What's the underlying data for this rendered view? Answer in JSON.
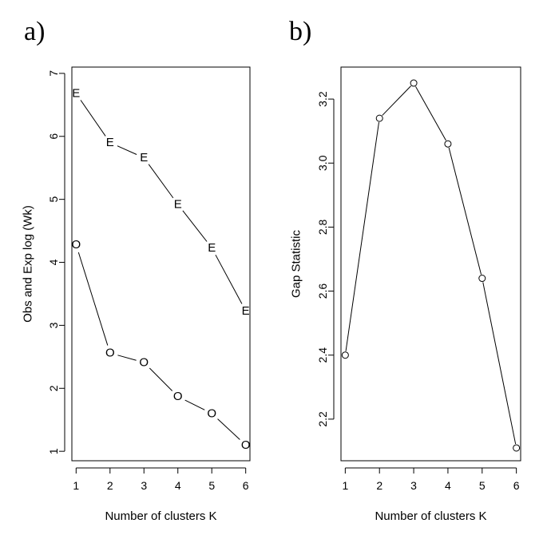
{
  "chart_data": [
    {
      "panel_label": "a)",
      "type": "line",
      "xlabel": "Number of clusters K",
      "ylabel": "Obs and Exp log (Wk)",
      "x": [
        1,
        2,
        3,
        4,
        5,
        6
      ],
      "xlim": [
        0.875,
        6.125
      ],
      "ylim": [
        0.85,
        7.1
      ],
      "xticks": [
        1,
        2,
        3,
        4,
        5,
        6
      ],
      "yticks": [
        1,
        2,
        3,
        4,
        5,
        6,
        7
      ],
      "grid": false,
      "series": [
        {
          "marker": "E",
          "values": [
            6.68,
            5.9,
            5.66,
            4.92,
            4.23,
            3.23
          ]
        },
        {
          "marker": "O",
          "values": [
            4.28,
            2.56,
            2.41,
            1.87,
            1.6,
            1.1
          ]
        }
      ]
    },
    {
      "panel_label": "b)",
      "type": "line",
      "xlabel": "Number of clusters K",
      "ylabel": "Gap Statistic",
      "x": [
        1,
        2,
        3,
        4,
        5,
        6
      ],
      "xlim": [
        0.875,
        6.125
      ],
      "ylim": [
        2.07,
        3.3
      ],
      "xticks": [
        1,
        2,
        3,
        4,
        5,
        6
      ],
      "yticks": [
        2.2,
        2.4,
        2.6,
        2.8,
        3.0,
        3.2
      ],
      "ytick_labels": [
        "2.2",
        "2.4",
        "2.6",
        "2.8",
        "3.0",
        "3.2"
      ],
      "grid": false,
      "series": [
        {
          "marker": "circle",
          "values": [
            2.4,
            3.14,
            3.25,
            3.06,
            2.64,
            2.11
          ]
        }
      ]
    }
  ]
}
